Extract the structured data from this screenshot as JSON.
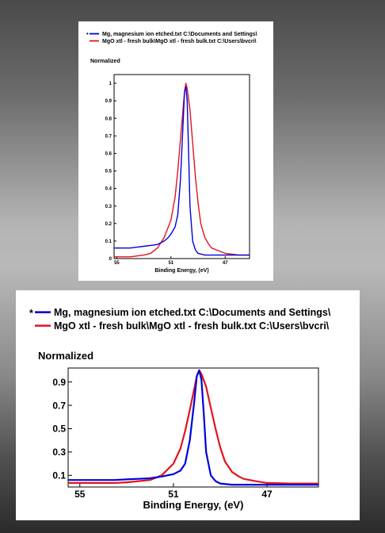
{
  "chart_data": [
    {
      "type": "line",
      "title": "",
      "ylabel": "Normalized",
      "xlabel": "Binding Energy, (eV)",
      "x_reversed": true,
      "xlim": [
        55.2,
        45.2
      ],
      "ylim": [
        0,
        1.05
      ],
      "x_ticks": [
        55,
        51,
        47
      ],
      "y_ticks": [
        0,
        0.1,
        0.2,
        0.3,
        0.4,
        0.5,
        0.6,
        0.7,
        0.8,
        0.9,
        1
      ],
      "y_tick_labels": [
        "0",
        "0.1",
        "0.2",
        "0.3",
        "0.4",
        "0.5",
        "0.6",
        "0.7",
        "0.8",
        "0.9",
        "1"
      ],
      "legend": [
        {
          "marker": "*",
          "label": "Mg, magnesium ion etched.txt C:\\Documents and Settings\\",
          "color": "#0000dd"
        },
        {
          "marker": "",
          "label": "MgO xtl - fresh bulk\\MgO xtl - fresh bulk.txt C:\\Users\\bvcri\\",
          "color": "#e0141e"
        }
      ],
      "legend_placement": "top",
      "grid": false,
      "series": [
        {
          "name": "Mg, magnesium ion etched.txt C:\\Documents and Settings\\",
          "color": "#0000dd",
          "x": [
            55.2,
            54.5,
            54.0,
            53.5,
            53.0,
            52.5,
            52.0,
            51.5,
            51.2,
            51.0,
            50.7,
            50.5,
            50.3,
            50.1,
            50.0,
            49.9,
            49.8,
            49.7,
            49.6,
            49.4,
            49.2,
            49.0,
            48.5,
            48.0,
            47.5,
            47.0,
            46.5,
            46.0,
            45.2
          ],
          "y": [
            0.06,
            0.06,
            0.06,
            0.065,
            0.07,
            0.075,
            0.08,
            0.1,
            0.12,
            0.14,
            0.18,
            0.25,
            0.45,
            0.78,
            0.95,
            0.98,
            0.9,
            0.6,
            0.3,
            0.1,
            0.05,
            0.03,
            0.02,
            0.02,
            0.02,
            0.02,
            0.02,
            0.02,
            0.02
          ]
        },
        {
          "name": "MgO xtl - fresh bulk\\MgO xtl - fresh bulk.txt C:\\Users\\bvcri\\",
          "color": "#e0141e",
          "x": [
            55.2,
            54.5,
            54.0,
            53.5,
            53.0,
            52.5,
            52.0,
            51.5,
            51.0,
            50.7,
            50.5,
            50.3,
            50.1,
            50.0,
            49.9,
            49.8,
            49.6,
            49.4,
            49.2,
            49.0,
            48.8,
            48.5,
            48.2,
            48.0,
            47.5,
            47.0,
            46.5,
            46.0,
            45.2
          ],
          "y": [
            0.01,
            0.01,
            0.01,
            0.015,
            0.02,
            0.03,
            0.06,
            0.12,
            0.22,
            0.35,
            0.5,
            0.68,
            0.86,
            0.95,
            1.0,
            0.97,
            0.85,
            0.66,
            0.47,
            0.32,
            0.2,
            0.12,
            0.08,
            0.06,
            0.045,
            0.03,
            0.025,
            0.02,
            0.02
          ]
        }
      ]
    },
    {
      "type": "line",
      "title": "",
      "ylabel": "Normalized",
      "xlabel": "Binding Energy, (eV)",
      "x_reversed": true,
      "xlim": [
        55.5,
        44.8
      ],
      "ylim": [
        0,
        1.02
      ],
      "x_ticks": [
        55,
        51,
        47
      ],
      "y_ticks": [
        0.1,
        0.3,
        0.5,
        0.7,
        0.9
      ],
      "y_tick_labels": [
        "0.1",
        "0.3",
        "0.5",
        "0.7",
        "0.9"
      ],
      "legend": [
        {
          "marker": "*",
          "label": "Mg, magnesium ion etched.txt C:\\Documents and Settings\\",
          "color": "#0000dd"
        },
        {
          "marker": "",
          "label": "MgO xtl - fresh bulk\\MgO xtl - fresh bulk.txt C:\\Users\\bvcri\\",
          "color": "#e0141e"
        }
      ],
      "legend_placement": "top",
      "grid": false,
      "series": [
        {
          "name": "Mg, magnesium ion etched.txt C:\\Documents and Settings\\",
          "color": "#0000dd",
          "x": [
            55.5,
            55.0,
            54.5,
            54.0,
            53.5,
            53.0,
            52.5,
            52.0,
            51.5,
            51.0,
            50.7,
            50.5,
            50.3,
            50.1,
            50.0,
            49.9,
            49.8,
            49.7,
            49.6,
            49.4,
            49.2,
            49.0,
            48.5,
            48.0,
            47.5,
            47.0,
            46.0,
            44.8
          ],
          "y": [
            0.06,
            0.06,
            0.06,
            0.06,
            0.06,
            0.065,
            0.07,
            0.075,
            0.09,
            0.11,
            0.14,
            0.2,
            0.4,
            0.75,
            0.95,
            1.0,
            0.92,
            0.62,
            0.3,
            0.1,
            0.05,
            0.03,
            0.02,
            0.02,
            0.02,
            0.02,
            0.02,
            0.02
          ]
        },
        {
          "name": "MgO xtl - fresh bulk\\MgO xtl - fresh bulk.txt C:\\Users\\bvcri\\",
          "color": "#e0141e",
          "x": [
            55.5,
            55.0,
            54.5,
            54.0,
            53.5,
            53.0,
            52.5,
            52.0,
            51.5,
            51.0,
            50.7,
            50.5,
            50.3,
            50.1,
            50.0,
            49.9,
            49.8,
            49.6,
            49.4,
            49.2,
            49.0,
            48.8,
            48.5,
            48.2,
            48.0,
            47.5,
            47.0,
            46.0,
            44.8
          ],
          "y": [
            0.035,
            0.035,
            0.035,
            0.035,
            0.035,
            0.04,
            0.05,
            0.06,
            0.1,
            0.2,
            0.33,
            0.48,
            0.66,
            0.85,
            0.95,
            1.0,
            0.97,
            0.86,
            0.68,
            0.5,
            0.34,
            0.22,
            0.13,
            0.09,
            0.07,
            0.05,
            0.035,
            0.03,
            0.03
          ]
        }
      ]
    }
  ]
}
